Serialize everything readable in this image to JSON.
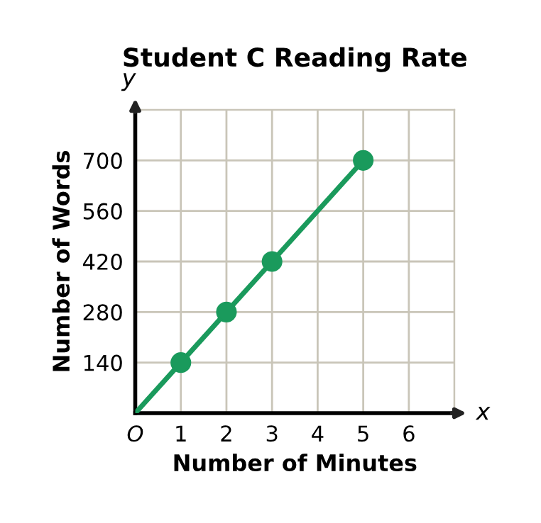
{
  "chart_data": {
    "type": "line",
    "title": "Student C Reading Rate",
    "xlabel": "Number of Minutes",
    "ylabel": "Number of Words",
    "annotations": [
      "x",
      "y"
    ],
    "series": [
      {
        "color": "#1a9a5c",
        "x": [
          0,
          1,
          2,
          3,
          5
        ],
        "values": [
          0,
          140,
          280,
          420,
          700
        ],
        "marker": "none"
      },
      {
        "type": "scatter",
        "color": "#1a9a5c",
        "x": [
          1,
          2,
          3,
          5
        ],
        "values": [
          140,
          280,
          420,
          700
        ],
        "marker": "circle"
      }
    ],
    "xlim": [
      0,
      7
    ],
    "ylim": [
      0,
      840
    ],
    "xticks": [
      {
        "value": 0,
        "label": "O"
      },
      1,
      2,
      3,
      4,
      5,
      6,
      {
        "value": 7,
        "label": null
      }
    ],
    "yticks": [
      140,
      280,
      420,
      560,
      700,
      {
        "value": 840,
        "label": null
      }
    ],
    "grid": true,
    "legend": false,
    "line_style": "solid"
  }
}
